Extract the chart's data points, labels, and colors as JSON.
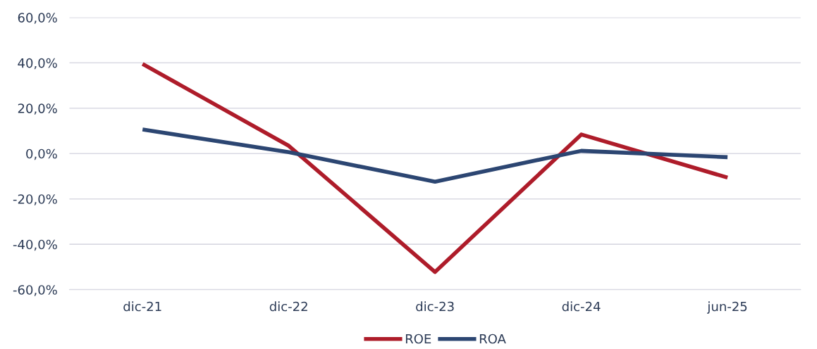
{
  "chart_data": {
    "type": "line",
    "categories": [
      "dic-21",
      "dic-22",
      "dic-23",
      "dic-24",
      "jun-25"
    ],
    "series": [
      {
        "name": "ROE",
        "color": "#ae1c2a",
        "values": [
          39.5,
          3.4,
          -52.2,
          8.4,
          -10.6
        ]
      },
      {
        "name": "ROA",
        "color": "#2c4672",
        "values": [
          10.6,
          0.6,
          -12.4,
          1.2,
          -1.6
        ]
      }
    ],
    "ylim": [
      -60,
      60
    ],
    "yticks": [
      {
        "value": -60,
        "label": "-60,0%"
      },
      {
        "value": -40,
        "label": "-40,0%"
      },
      {
        "value": -20,
        "label": "-20,0%"
      },
      {
        "value": 0,
        "label": "0,0%"
      },
      {
        "value": 20,
        "label": "20,0%"
      },
      {
        "value": 40,
        "label": "40,0%"
      },
      {
        "value": 60,
        "label": "60,0%"
      }
    ],
    "grid": "y",
    "legend": "bottom",
    "marker": "none",
    "line_style": "solid"
  }
}
